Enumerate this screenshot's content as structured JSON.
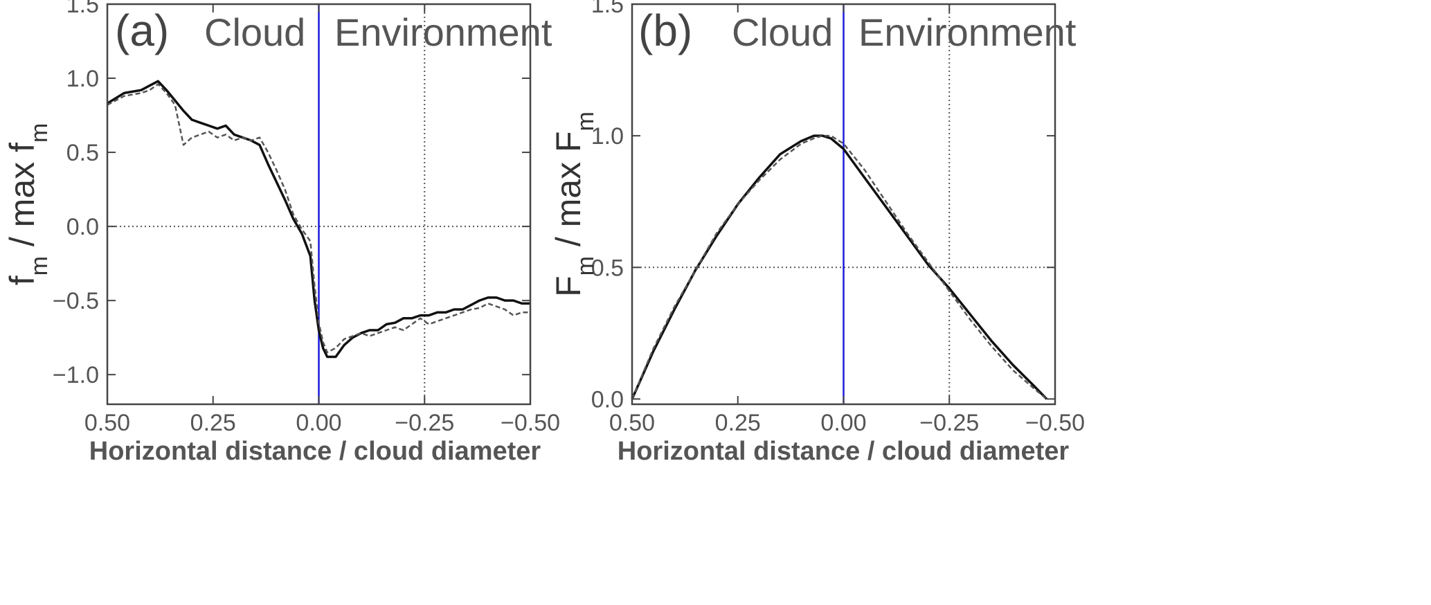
{
  "chart_data": [
    {
      "type": "line",
      "panel_label": "(a)",
      "region_labels": {
        "left": "Cloud",
        "right": "Environment"
      },
      "xlabel": "Horizontal distance / cloud diameter",
      "ylabel": {
        "main": "f",
        "sub": "m",
        "middle": " / max f",
        "sub2": "m"
      },
      "xlim": [
        0.5,
        -0.5
      ],
      "ylim": [
        -1.2,
        1.5
      ],
      "x_ticks": [
        "0.50",
        "0.25",
        "0.00",
        "−0.25",
        "−0.50"
      ],
      "y_ticks": [
        "−1.0",
        "−0.5",
        "0.0",
        "0.5",
        "1.0",
        "1.5"
      ],
      "reference_lines": {
        "horizontal_y": 0.0,
        "vertical_dotted_x": -0.25,
        "vertical_solid_x": 0.0,
        "vertical_solid_color": "#1a1adb"
      },
      "series": [
        {
          "style": "solid",
          "color": "#111111",
          "x": [
            0.5,
            0.46,
            0.42,
            0.4,
            0.38,
            0.36,
            0.34,
            0.32,
            0.3,
            0.28,
            0.26,
            0.24,
            0.22,
            0.2,
            0.18,
            0.16,
            0.14,
            0.12,
            0.1,
            0.08,
            0.06,
            0.04,
            0.02,
            0.01,
            0.0,
            -0.01,
            -0.02,
            -0.04,
            -0.06,
            -0.08,
            -0.1,
            -0.12,
            -0.14,
            -0.16,
            -0.18,
            -0.2,
            -0.22,
            -0.24,
            -0.26,
            -0.28,
            -0.3,
            -0.32,
            -0.34,
            -0.36,
            -0.38,
            -0.4,
            -0.42,
            -0.44,
            -0.46,
            -0.48,
            -0.5
          ],
          "y": [
            0.83,
            0.9,
            0.92,
            0.95,
            0.98,
            0.92,
            0.85,
            0.78,
            0.72,
            0.7,
            0.68,
            0.66,
            0.68,
            0.62,
            0.6,
            0.58,
            0.55,
            0.42,
            0.3,
            0.18,
            0.05,
            -0.05,
            -0.2,
            -0.5,
            -0.7,
            -0.82,
            -0.88,
            -0.88,
            -0.8,
            -0.75,
            -0.72,
            -0.7,
            -0.7,
            -0.66,
            -0.65,
            -0.62,
            -0.62,
            -0.6,
            -0.6,
            -0.58,
            -0.58,
            -0.56,
            -0.56,
            -0.53,
            -0.5,
            -0.48,
            -0.48,
            -0.5,
            -0.5,
            -0.52,
            -0.52
          ]
        },
        {
          "style": "dashed",
          "color": "#555555",
          "x": [
            0.5,
            0.46,
            0.42,
            0.4,
            0.38,
            0.36,
            0.34,
            0.32,
            0.3,
            0.28,
            0.26,
            0.24,
            0.22,
            0.2,
            0.18,
            0.16,
            0.14,
            0.12,
            0.1,
            0.08,
            0.06,
            0.04,
            0.02,
            0.01,
            0.0,
            -0.01,
            -0.02,
            -0.04,
            -0.06,
            -0.08,
            -0.1,
            -0.12,
            -0.14,
            -0.16,
            -0.18,
            -0.2,
            -0.22,
            -0.24,
            -0.26,
            -0.28,
            -0.3,
            -0.32,
            -0.34,
            -0.36,
            -0.38,
            -0.4,
            -0.42,
            -0.44,
            -0.46,
            -0.48,
            -0.5
          ],
          "y": [
            0.82,
            0.88,
            0.9,
            0.92,
            0.96,
            0.9,
            0.82,
            0.55,
            0.6,
            0.62,
            0.64,
            0.6,
            0.62,
            0.58,
            0.6,
            0.58,
            0.6,
            0.5,
            0.38,
            0.25,
            0.08,
            -0.02,
            -0.1,
            -0.4,
            -0.65,
            -0.78,
            -0.85,
            -0.82,
            -0.76,
            -0.74,
            -0.72,
            -0.74,
            -0.72,
            -0.7,
            -0.68,
            -0.7,
            -0.66,
            -0.62,
            -0.66,
            -0.64,
            -0.62,
            -0.6,
            -0.58,
            -0.56,
            -0.55,
            -0.52,
            -0.54,
            -0.56,
            -0.6,
            -0.58,
            -0.58
          ]
        }
      ]
    },
    {
      "type": "line",
      "panel_label": "(b)",
      "region_labels": {
        "left": "Cloud",
        "right": "Environment"
      },
      "xlabel": "Horizontal distance / cloud diameter",
      "ylabel": {
        "main": "F",
        "sub": "m",
        "middle": " / max F",
        "sub2": "m"
      },
      "xlim": [
        0.5,
        -0.5
      ],
      "ylim": [
        -0.02,
        1.5
      ],
      "x_ticks": [
        "0.50",
        "0.25",
        "0.00",
        "−0.25",
        "−0.50"
      ],
      "y_ticks": [
        "0.0",
        "0.5",
        "1.0",
        "1.5"
      ],
      "reference_lines": {
        "horizontal_y": 0.5,
        "vertical_dotted_x": -0.25,
        "vertical_solid_x": 0.0,
        "vertical_solid_color": "#1a1adb"
      },
      "series": [
        {
          "style": "solid",
          "color": "#111111",
          "x": [
            0.5,
            0.45,
            0.4,
            0.35,
            0.3,
            0.25,
            0.2,
            0.15,
            0.1,
            0.07,
            0.05,
            0.03,
            0.0,
            -0.05,
            -0.1,
            -0.15,
            -0.2,
            -0.25,
            -0.3,
            -0.35,
            -0.4,
            -0.45,
            -0.48
          ],
          "y": [
            0.0,
            0.18,
            0.34,
            0.49,
            0.62,
            0.74,
            0.84,
            0.93,
            0.98,
            1.0,
            1.0,
            0.99,
            0.95,
            0.84,
            0.73,
            0.62,
            0.51,
            0.42,
            0.32,
            0.22,
            0.13,
            0.05,
            0.0
          ]
        },
        {
          "style": "dashed",
          "color": "#555555",
          "x": [
            0.5,
            0.45,
            0.4,
            0.35,
            0.3,
            0.25,
            0.2,
            0.15,
            0.1,
            0.07,
            0.05,
            0.03,
            0.0,
            -0.05,
            -0.1,
            -0.15,
            -0.2,
            -0.25,
            -0.3,
            -0.35,
            -0.4,
            -0.45,
            -0.48
          ],
          "y": [
            0.0,
            0.19,
            0.35,
            0.49,
            0.63,
            0.74,
            0.83,
            0.91,
            0.97,
            0.99,
            1.0,
            1.0,
            0.97,
            0.87,
            0.75,
            0.63,
            0.52,
            0.41,
            0.3,
            0.2,
            0.11,
            0.04,
            0.0
          ]
        }
      ]
    }
  ]
}
